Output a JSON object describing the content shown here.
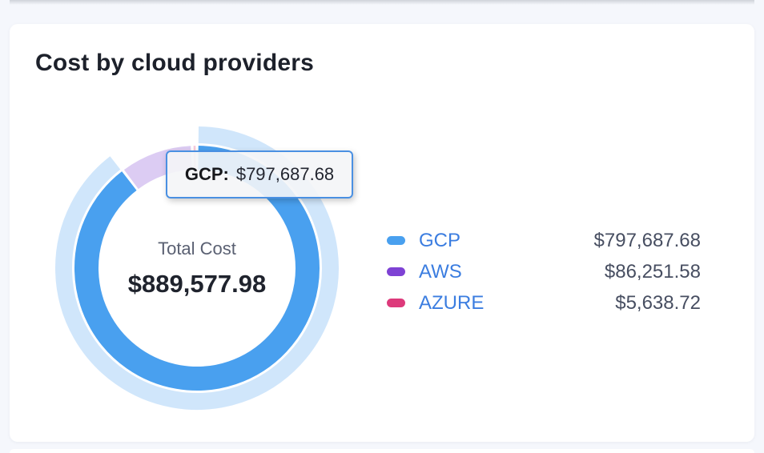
{
  "card": {
    "title": "Cost by cloud providers"
  },
  "tooltip": {
    "label": "GCP:",
    "value": "$797,687.68"
  },
  "chart_data": {
    "type": "pie",
    "donut": true,
    "title": "Cost by cloud providers",
    "total_label": "Total Cost",
    "total_formatted": "$889,577.98",
    "total": 889577.98,
    "series": [
      {
        "name": "GCP",
        "value": 797687.68,
        "formatted": "$797,687.68",
        "color": "#49a0ef"
      },
      {
        "name": "AWS",
        "value": 86251.58,
        "formatted": "$86,251.58",
        "color": "#7e42d4"
      },
      {
        "name": "AZURE",
        "value": 5638.72,
        "formatted": "$5,638.72",
        "color": "#dd3a7b"
      }
    ],
    "highlighted": "GCP",
    "legend_position": "right",
    "colors": {
      "legend_label": "#3b7de0",
      "legend_value": "#474e61",
      "tooltip_border": "#4a90e2"
    }
  }
}
